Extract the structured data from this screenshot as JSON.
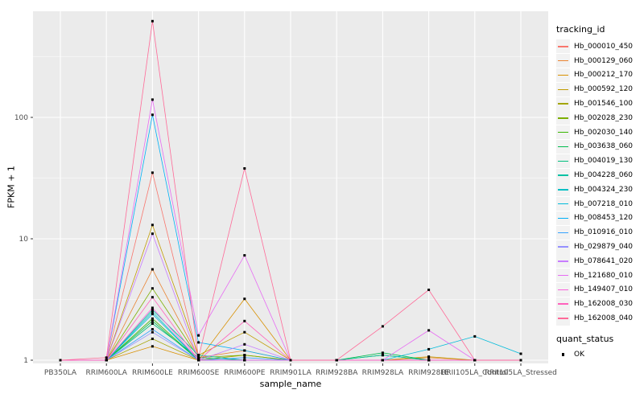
{
  "chart_data": {
    "type": "line",
    "xlabel": "sample_name",
    "ylabel": "FPKM + 1",
    "y_scale": "log10",
    "y_ticks": [
      1,
      10,
      100
    ],
    "ylim": [
      1,
      750
    ],
    "grid": true,
    "panel_bg": "#EBEBEB",
    "grid_color": "#FFFFFF",
    "point_color": "#000000",
    "axis_text_color": "#4D4D4D",
    "legend": {
      "series_title": "tracking_id",
      "status_title": "quant_status",
      "status_items": [
        {
          "label": "OK"
        }
      ]
    },
    "x_categories": [
      "PB350LA",
      "RRIM600LA",
      "RRIM600LE",
      "RRIM600SE",
      "RRIM600PE",
      "RRIM901LA",
      "RRIM928BA",
      "RRIM928LA",
      "RRIM928LE",
      "RRII105LA_Control",
      "RRII105LA_Stressed"
    ],
    "series": [
      {
        "name": "Hb_000010_450",
        "color": "#F8766D",
        "values": [
          1,
          1,
          35,
          1,
          1,
          1,
          1,
          1,
          1,
          1,
          1
        ]
      },
      {
        "name": "Hb_000129_060",
        "color": "#EA8331",
        "values": [
          1,
          1,
          5.6,
          1.05,
          1.2,
          1,
          1,
          1,
          1.05,
          1,
          1
        ]
      },
      {
        "name": "Hb_000212_170",
        "color": "#D89000",
        "values": [
          1,
          1,
          1.3,
          1,
          3.2,
          1,
          1,
          1,
          1,
          1,
          1
        ]
      },
      {
        "name": "Hb_000592_120",
        "color": "#C09B00",
        "values": [
          1,
          1,
          13,
          1.1,
          1.7,
          1,
          1,
          1,
          1.07,
          1,
          1
        ]
      },
      {
        "name": "Hb_001546_100",
        "color": "#A3A500",
        "values": [
          1,
          1,
          1.5,
          1,
          1.1,
          1,
          1,
          1,
          1,
          1,
          1
        ]
      },
      {
        "name": "Hb_002028_230",
        "color": "#7CAE00",
        "values": [
          1,
          1,
          3.9,
          1.05,
          1.1,
          1,
          1,
          1,
          1,
          1,
          1
        ]
      },
      {
        "name": "Hb_002030_140",
        "color": "#39B600",
        "values": [
          1,
          1,
          2.2,
          1,
          1,
          1,
          1,
          1.1,
          1,
          1,
          1
        ]
      },
      {
        "name": "Hb_003638_060",
        "color": "#00BB4E",
        "values": [
          1,
          1,
          2.1,
          1,
          1,
          1,
          1,
          1.15,
          1,
          1,
          1
        ]
      },
      {
        "name": "Hb_004019_130",
        "color": "#00BF7D",
        "values": [
          1,
          1,
          2.0,
          1.05,
          1,
          1,
          1,
          1,
          1,
          1,
          1
        ]
      },
      {
        "name": "Hb_004228_060",
        "color": "#00C1A3",
        "values": [
          1,
          1,
          2.6,
          1.1,
          1,
          1,
          1,
          1.1,
          1,
          1,
          1
        ]
      },
      {
        "name": "Hb_004324_230",
        "color": "#00BFC4",
        "values": [
          1,
          1,
          2.5,
          1,
          1,
          1,
          1,
          1,
          1,
          1,
          1
        ]
      },
      {
        "name": "Hb_007218_010",
        "color": "#00BBDA",
        "values": [
          1,
          1,
          2.4,
          1,
          1,
          1,
          1,
          1,
          1.23,
          1.57,
          1.13
        ]
      },
      {
        "name": "Hb_008453_120",
        "color": "#00B0F6",
        "values": [
          1,
          1,
          105,
          1.4,
          1.2,
          1,
          1,
          1,
          1,
          1,
          1
        ]
      },
      {
        "name": "Hb_010916_010",
        "color": "#35A2FF",
        "values": [
          1,
          1,
          1.8,
          1,
          1.05,
          1,
          1,
          1,
          1,
          1,
          1
        ]
      },
      {
        "name": "Hb_029879_040",
        "color": "#9590FF",
        "values": [
          1,
          1,
          1.7,
          1,
          1,
          1,
          1,
          1,
          1,
          1,
          1
        ]
      },
      {
        "name": "Hb_078641_020",
        "color": "#C77CFF",
        "values": [
          1,
          1,
          11,
          1,
          1.35,
          1,
          1,
          1,
          1,
          1,
          1
        ]
      },
      {
        "name": "Hb_121680_010",
        "color": "#E76BF3",
        "values": [
          1,
          1,
          140,
          1.6,
          7.3,
          1,
          1,
          1,
          1.76,
          1,
          1
        ]
      },
      {
        "name": "Hb_149407_010",
        "color": "#FA62DB",
        "values": [
          1,
          1,
          2.7,
          1,
          1,
          1,
          1,
          1,
          1,
          1,
          1
        ]
      },
      {
        "name": "Hb_162008_030",
        "color": "#FF62BC",
        "values": [
          1,
          1,
          3.3,
          1,
          2.1,
          1,
          1,
          1,
          1,
          1,
          1
        ]
      },
      {
        "name": "Hb_162008_040",
        "color": "#FF6A98",
        "values": [
          1,
          1.05,
          620,
          1.05,
          38,
          1,
          1,
          1.9,
          3.8,
          1,
          1
        ]
      }
    ]
  }
}
